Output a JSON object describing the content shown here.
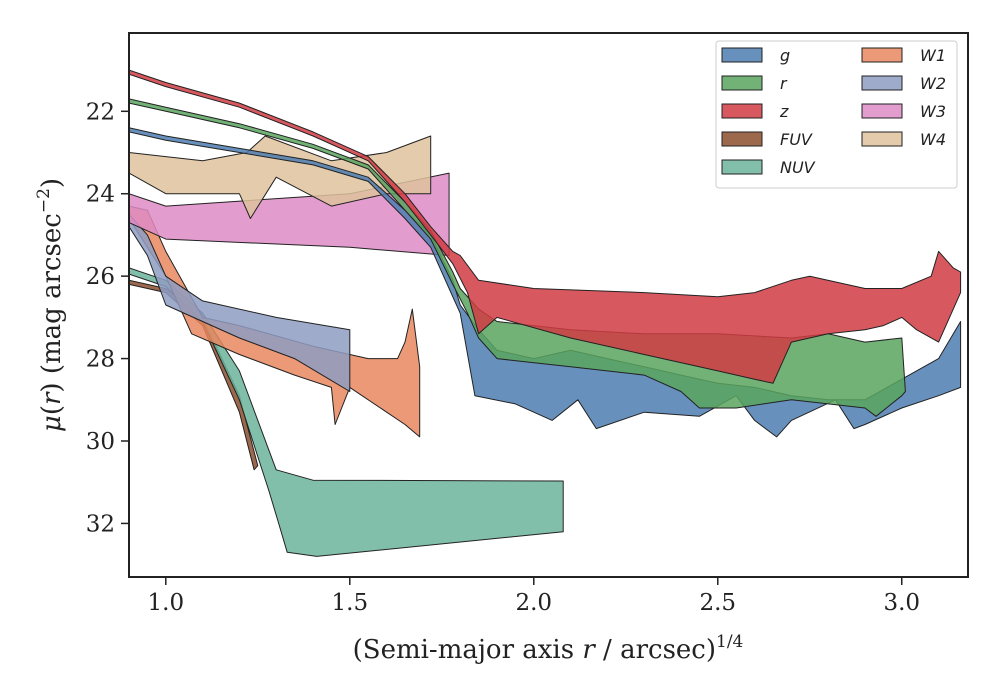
{
  "chart_data": {
    "type": "area",
    "xlabel": "(Semi-major axis r / arcsec)^1/4",
    "xlabel_parts": {
      "prefix": "(Semi-major axis ",
      "var": "r",
      "suffix": " / arcsec)",
      "sup": "1/4"
    },
    "ylabel": "μ(r) (mag arcsec^−2)",
    "ylabel_parts": {
      "mu": "μ",
      "var": "r",
      "mid": " (mag arcsec",
      "sup": "−2",
      "end": ")"
    },
    "xlim": [
      0.9,
      3.18
    ],
    "ylim": [
      33.3,
      20.1
    ],
    "y_inverted": true,
    "xticks": [
      1.0,
      1.5,
      2.0,
      2.5,
      3.0
    ],
    "xtick_labels": [
      "1.0",
      "1.5",
      "2.0",
      "2.5",
      "3.0"
    ],
    "yticks": [
      22,
      24,
      26,
      28,
      30,
      32
    ],
    "ytick_labels": [
      "22",
      "24",
      "26",
      "28",
      "30",
      "32"
    ],
    "grid": false,
    "legend_placement": "top-right",
    "series": [
      {
        "name": "FUV",
        "color": "#8C4F2E",
        "upper": [
          [
            0.9,
            26.1
          ],
          [
            1.0,
            26.3
          ],
          [
            1.1,
            27.0
          ],
          [
            1.2,
            28.9
          ],
          [
            1.25,
            30.6
          ]
        ],
        "lower": [
          [
            0.9,
            26.2
          ],
          [
            1.0,
            26.4
          ],
          [
            1.1,
            27.2
          ],
          [
            1.2,
            29.3
          ],
          [
            1.24,
            30.7
          ]
        ]
      },
      {
        "name": "NUV",
        "color": "#6BB49C",
        "upper": [
          [
            0.9,
            25.8
          ],
          [
            1.0,
            26.1
          ],
          [
            1.1,
            26.9
          ],
          [
            1.2,
            28.3
          ],
          [
            1.3,
            30.7
          ],
          [
            1.4,
            30.95
          ],
          [
            2.08,
            30.97
          ]
        ],
        "lower": [
          [
            0.9,
            25.95
          ],
          [
            1.0,
            26.25
          ],
          [
            1.1,
            27.1
          ],
          [
            1.2,
            29.0
          ],
          [
            1.28,
            31.2
          ],
          [
            1.31,
            32.1
          ],
          [
            1.33,
            32.7
          ],
          [
            1.41,
            32.8
          ],
          [
            2.08,
            32.2
          ]
        ]
      },
      {
        "name": "W1",
        "color": "#E8875E",
        "upper": [
          [
            0.9,
            24.3
          ],
          [
            0.95,
            24.4
          ],
          [
            1.0,
            25.4
          ],
          [
            1.1,
            27.0
          ],
          [
            1.2,
            27.2
          ],
          [
            1.4,
            27.7
          ],
          [
            1.55,
            28.0
          ],
          [
            1.63,
            28.0
          ],
          [
            1.65,
            27.6
          ],
          [
            1.67,
            26.8
          ],
          [
            1.69,
            28.2
          ]
        ],
        "lower": [
          [
            0.9,
            24.6
          ],
          [
            1.0,
            26.0
          ],
          [
            1.07,
            27.4
          ],
          [
            1.2,
            27.9
          ],
          [
            1.35,
            28.4
          ],
          [
            1.45,
            28.7
          ],
          [
            1.46,
            29.6
          ],
          [
            1.5,
            28.7
          ],
          [
            1.65,
            29.6
          ],
          [
            1.69,
            29.9
          ]
        ]
      },
      {
        "name": "W2",
        "color": "#8E9CC2",
        "upper": [
          [
            0.9,
            24.5
          ],
          [
            0.95,
            25.0
          ],
          [
            1.0,
            26.0
          ],
          [
            1.1,
            26.6
          ],
          [
            1.3,
            27.0
          ],
          [
            1.5,
            27.3
          ]
        ],
        "lower": [
          [
            0.9,
            24.8
          ],
          [
            0.95,
            25.5
          ],
          [
            1.0,
            26.7
          ],
          [
            1.2,
            27.5
          ],
          [
            1.35,
            28.0
          ],
          [
            1.5,
            28.8
          ]
        ]
      },
      {
        "name": "W3",
        "color": "#DE8BC6",
        "upper": [
          [
            0.9,
            24.0
          ],
          [
            1.0,
            24.3
          ],
          [
            1.5,
            24.0
          ],
          [
            1.77,
            23.5
          ]
        ],
        "lower": [
          [
            0.9,
            24.7
          ],
          [
            1.0,
            25.1
          ],
          [
            1.5,
            25.3
          ],
          [
            1.77,
            25.5
          ]
        ]
      },
      {
        "name": "W4",
        "color": "#DEC29C",
        "upper": [
          [
            0.9,
            23.0
          ],
          [
            1.1,
            23.2
          ],
          [
            1.22,
            23.0
          ],
          [
            1.27,
            22.6
          ],
          [
            1.45,
            23.2
          ],
          [
            1.6,
            23.0
          ],
          [
            1.72,
            22.6
          ]
        ],
        "lower": [
          [
            0.9,
            23.5
          ],
          [
            1.0,
            24.0
          ],
          [
            1.2,
            24.0
          ],
          [
            1.23,
            24.6
          ],
          [
            1.3,
            23.6
          ],
          [
            1.45,
            24.3
          ],
          [
            1.6,
            24.0
          ],
          [
            1.72,
            24.0
          ]
        ]
      },
      {
        "name": "g",
        "color": "#4C7EB0",
        "upper": [
          [
            0.9,
            22.4
          ],
          [
            1.0,
            22.6
          ],
          [
            1.2,
            22.9
          ],
          [
            1.4,
            23.2
          ],
          [
            1.55,
            23.6
          ],
          [
            1.65,
            24.4
          ],
          [
            1.72,
            25.0
          ],
          [
            1.78,
            26.1
          ],
          [
            1.8,
            26.7
          ],
          [
            1.85,
            27.3
          ],
          [
            1.9,
            27.8
          ],
          [
            2.0,
            28.0
          ],
          [
            2.1,
            27.8
          ],
          [
            2.2,
            28.0
          ],
          [
            2.3,
            28.2
          ],
          [
            2.4,
            28.4
          ],
          [
            2.5,
            28.6
          ],
          [
            2.6,
            28.7
          ],
          [
            2.7,
            28.9
          ],
          [
            2.8,
            29.0
          ],
          [
            2.9,
            29.0
          ],
          [
            3.0,
            28.5
          ],
          [
            3.1,
            28.0
          ],
          [
            3.16,
            27.1
          ]
        ],
        "lower": [
          [
            0.9,
            22.5
          ],
          [
            1.0,
            22.7
          ],
          [
            1.2,
            23.0
          ],
          [
            1.4,
            23.3
          ],
          [
            1.55,
            23.7
          ],
          [
            1.65,
            24.6
          ],
          [
            1.72,
            25.3
          ],
          [
            1.78,
            26.5
          ],
          [
            1.8,
            26.9
          ],
          [
            1.84,
            28.9
          ],
          [
            1.95,
            29.1
          ],
          [
            2.05,
            29.5
          ],
          [
            2.12,
            29.0
          ],
          [
            2.17,
            29.7
          ],
          [
            2.3,
            29.3
          ],
          [
            2.45,
            29.4
          ],
          [
            2.55,
            28.9
          ],
          [
            2.6,
            29.5
          ],
          [
            2.66,
            29.9
          ],
          [
            2.7,
            29.5
          ],
          [
            2.82,
            29.0
          ],
          [
            2.87,
            29.7
          ],
          [
            2.9,
            29.6
          ],
          [
            3.0,
            29.2
          ],
          [
            3.1,
            28.9
          ],
          [
            3.16,
            28.7
          ]
        ]
      },
      {
        "name": "r",
        "color": "#59A45E",
        "upper": [
          [
            0.9,
            21.7
          ],
          [
            1.0,
            21.9
          ],
          [
            1.2,
            22.3
          ],
          [
            1.4,
            22.8
          ],
          [
            1.55,
            23.3
          ],
          [
            1.65,
            24.2
          ],
          [
            1.72,
            24.9
          ],
          [
            1.78,
            25.9
          ],
          [
            1.8,
            26.3
          ],
          [
            1.85,
            26.8
          ],
          [
            1.9,
            27.1
          ],
          [
            2.1,
            27.3
          ],
          [
            2.3,
            27.4
          ],
          [
            2.5,
            27.4
          ],
          [
            2.7,
            27.5
          ],
          [
            2.8,
            27.4
          ],
          [
            2.9,
            27.6
          ],
          [
            3.0,
            27.5
          ]
        ],
        "lower": [
          [
            0.9,
            21.8
          ],
          [
            1.0,
            22.0
          ],
          [
            1.2,
            22.4
          ],
          [
            1.4,
            22.9
          ],
          [
            1.55,
            23.4
          ],
          [
            1.65,
            24.4
          ],
          [
            1.72,
            25.1
          ],
          [
            1.78,
            26.2
          ],
          [
            1.82,
            26.9
          ],
          [
            1.85,
            27.5
          ],
          [
            1.9,
            28.0
          ],
          [
            2.1,
            28.2
          ],
          [
            2.3,
            28.4
          ],
          [
            2.4,
            28.8
          ],
          [
            2.45,
            29.2
          ],
          [
            2.55,
            29.2
          ],
          [
            2.7,
            29.0
          ],
          [
            2.9,
            29.2
          ],
          [
            2.93,
            29.4
          ],
          [
            3.0,
            28.9
          ],
          [
            3.01,
            28.8
          ]
        ]
      },
      {
        "name": "z",
        "color": "#D13B43",
        "upper": [
          [
            0.9,
            21.0
          ],
          [
            1.0,
            21.3
          ],
          [
            1.2,
            21.8
          ],
          [
            1.4,
            22.5
          ],
          [
            1.55,
            23.1
          ],
          [
            1.65,
            24.0
          ],
          [
            1.72,
            24.8
          ],
          [
            1.78,
            25.4
          ],
          [
            1.8,
            25.5
          ],
          [
            1.85,
            26.1
          ],
          [
            2.0,
            26.3
          ],
          [
            2.3,
            26.4
          ],
          [
            2.5,
            26.5
          ],
          [
            2.6,
            26.4
          ],
          [
            2.7,
            26.1
          ],
          [
            2.75,
            26.0
          ],
          [
            2.9,
            26.3
          ],
          [
            3.0,
            26.3
          ],
          [
            3.08,
            26.0
          ],
          [
            3.1,
            25.4
          ],
          [
            3.14,
            25.8
          ],
          [
            3.16,
            25.9
          ]
        ],
        "lower": [
          [
            0.9,
            21.1
          ],
          [
            1.0,
            21.4
          ],
          [
            1.2,
            21.9
          ],
          [
            1.4,
            22.6
          ],
          [
            1.55,
            23.2
          ],
          [
            1.65,
            24.2
          ],
          [
            1.72,
            25.0
          ],
          [
            1.78,
            25.7
          ],
          [
            1.82,
            26.4
          ],
          [
            1.85,
            27.4
          ],
          [
            1.9,
            27.0
          ],
          [
            2.1,
            27.5
          ],
          [
            2.3,
            27.9
          ],
          [
            2.5,
            28.3
          ],
          [
            2.6,
            28.5
          ],
          [
            2.65,
            28.6
          ],
          [
            2.7,
            27.6
          ],
          [
            2.8,
            27.4
          ],
          [
            2.9,
            27.3
          ],
          [
            2.95,
            27.2
          ],
          [
            3.0,
            27.0
          ],
          [
            3.04,
            27.3
          ],
          [
            3.1,
            27.6
          ],
          [
            3.16,
            26.4
          ]
        ]
      }
    ],
    "legend_left": [
      "g",
      "r",
      "z",
      "FUV",
      "NUV"
    ],
    "legend_right": [
      "W1",
      "W2",
      "W3",
      "W4"
    ]
  }
}
